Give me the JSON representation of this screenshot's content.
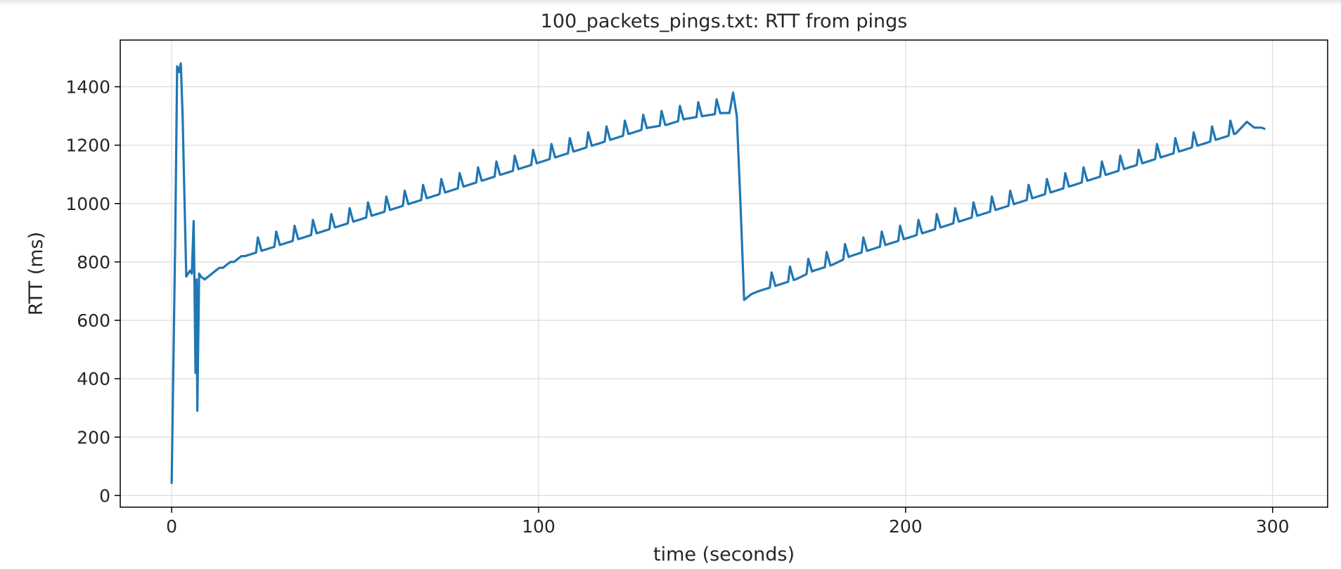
{
  "chart_data": {
    "type": "line",
    "title": "100_packets_pings.txt: RTT from pings",
    "xlabel": "time (seconds)",
    "ylabel": "RTT (ms)",
    "xlim": [
      -14,
      315
    ],
    "ylim": [
      -40,
      1560
    ],
    "xticks": [
      0,
      100,
      200,
      300
    ],
    "yticks": [
      0,
      200,
      400,
      600,
      800,
      1000,
      1200,
      1400
    ],
    "grid": true,
    "line_color": "#1f77b4",
    "series": [
      {
        "x": [
          0,
          1,
          1.5,
          2,
          2.5,
          3,
          3.5,
          4,
          4.5,
          5,
          5.5,
          6,
          6.2,
          6.5,
          6.8,
          7,
          7.5,
          8,
          9,
          10,
          11,
          12,
          13,
          14,
          15,
          16,
          17,
          18,
          19,
          20,
          25,
          30,
          35,
          40,
          45,
          50,
          55,
          60,
          65,
          70,
          75,
          80,
          85,
          90,
          95,
          100,
          105,
          110,
          115,
          120,
          125,
          130,
          135,
          140,
          145,
          150,
          152,
          153,
          154,
          155,
          156,
          157,
          158,
          160,
          165,
          170,
          175,
          180,
          185,
          190,
          195,
          200,
          205,
          210,
          215,
          220,
          225,
          230,
          235,
          240,
          245,
          250,
          255,
          260,
          265,
          270,
          275,
          280,
          285,
          290,
          293,
          295,
          297,
          298
        ],
        "y": [
          40,
          900,
          1470,
          1450,
          1480,
          1300,
          1020,
          750,
          760,
          770,
          760,
          940,
          760,
          420,
          740,
          290,
          760,
          750,
          740,
          750,
          760,
          770,
          780,
          780,
          790,
          800,
          800,
          810,
          820,
          820,
          840,
          860,
          880,
          900,
          920,
          940,
          960,
          980,
          1000,
          1020,
          1040,
          1060,
          1080,
          1100,
          1120,
          1140,
          1160,
          1180,
          1200,
          1220,
          1240,
          1260,
          1270,
          1290,
          1300,
          1310,
          1310,
          1380,
          1300,
          1000,
          670,
          680,
          690,
          700,
          720,
          740,
          770,
          790,
          820,
          840,
          860,
          880,
          900,
          920,
          940,
          960,
          980,
          1000,
          1020,
          1040,
          1060,
          1080,
          1100,
          1120,
          1140,
          1160,
          1180,
          1200,
          1220,
          1240,
          1280,
          1260,
          1260,
          1255
        ],
        "spikes_every_s": 5,
        "spike_height_ms": 50
      }
    ]
  }
}
